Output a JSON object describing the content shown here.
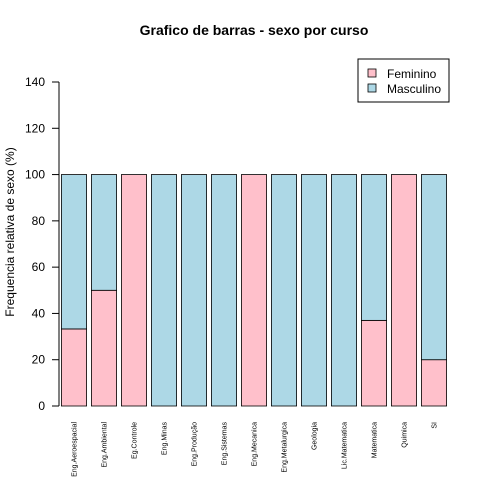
{
  "chart_data": {
    "type": "bar",
    "stacked": true,
    "title": "Grafico de barras - sexo por curso",
    "xlabel": "",
    "ylabel": "Frequencia relativa de sexo (%)",
    "ylim": [
      0,
      140
    ],
    "yticks": [
      0,
      20,
      40,
      60,
      80,
      100,
      120,
      140
    ],
    "grid": false,
    "legend_position": "top-right",
    "categories": [
      "Eng.Aeroespacial",
      "Eng.Ambiental",
      "Eg.Controle",
      "Eng.Minas",
      "Eng.Produção",
      "Eng.Sistemas",
      "Eng.Mecanica",
      "Eng.Metalurgica",
      "Geologia",
      "Lic.Matematica",
      "Matematica",
      "Quimica",
      "SI"
    ],
    "series": [
      {
        "name": "Feminino",
        "color": "#ffc0cb",
        "values": [
          33.3,
          50,
          100,
          0,
          0,
          0,
          100,
          0,
          0,
          0,
          37,
          100,
          20
        ]
      },
      {
        "name": "Masculino",
        "color": "#add8e6",
        "values": [
          66.7,
          50,
          0,
          100,
          100,
          100,
          0,
          100,
          100,
          100,
          63,
          0,
          80
        ]
      }
    ]
  }
}
